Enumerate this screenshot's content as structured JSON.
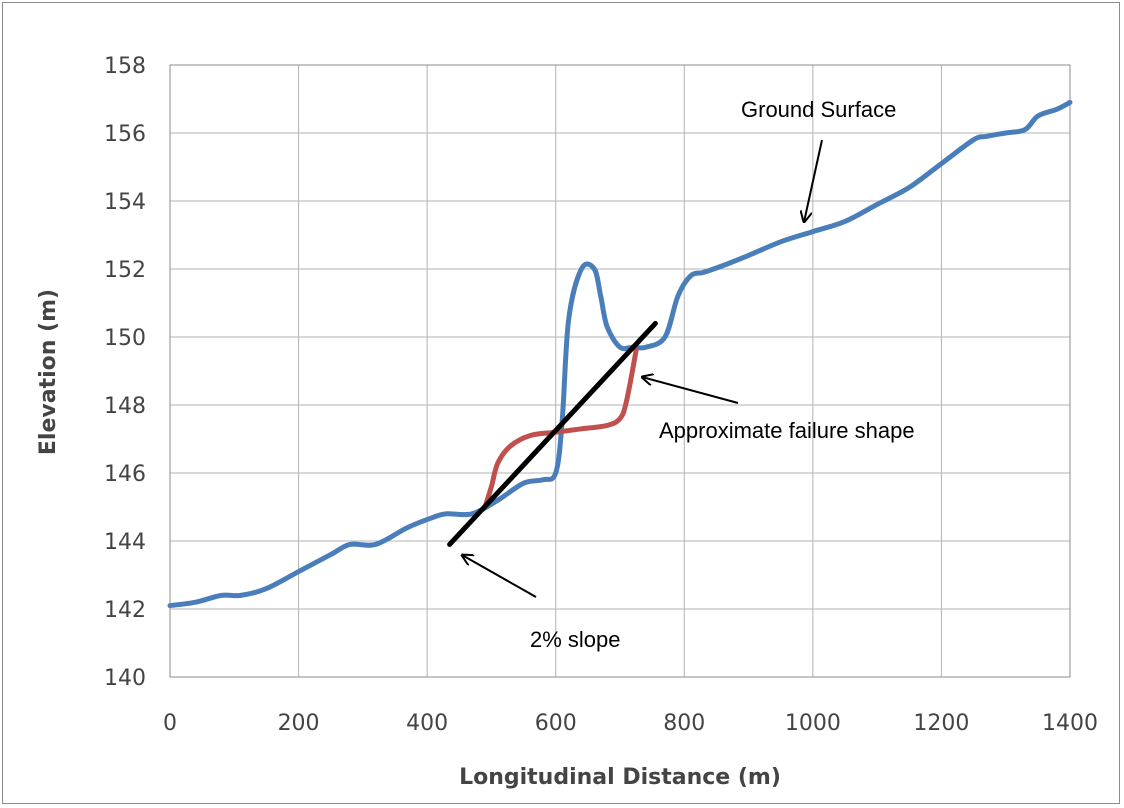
{
  "chart_data": {
    "type": "line",
    "title": "",
    "xlabel": "Longitudinal Distance (m)",
    "ylabel": "Elevation (m)",
    "xlim": [
      0,
      1400
    ],
    "ylim": [
      140,
      158
    ],
    "x_ticks": [
      "0",
      "200",
      "400",
      "600",
      "800",
      "1000",
      "1200",
      "1400"
    ],
    "y_ticks": [
      "140",
      "142",
      "144",
      "146",
      "148",
      "150",
      "152",
      "154",
      "156",
      "158"
    ],
    "grid": true,
    "legend": "none",
    "series": [
      {
        "color": "#4a7ebb",
        "x": [
          0,
          40,
          80,
          110,
          150,
          200,
          250,
          280,
          320,
          370,
          410,
          430,
          470,
          510,
          550,
          580,
          600,
          610,
          620,
          640,
          660,
          670,
          680,
          700,
          720,
          740,
          770,
          790,
          810,
          830,
          860,
          900,
          950,
          1000,
          1050,
          1100,
          1150,
          1200,
          1250,
          1270,
          1300,
          1330,
          1350,
          1380,
          1400
        ],
        "y": [
          142.1,
          142.2,
          142.4,
          142.4,
          142.6,
          143.1,
          143.6,
          143.9,
          143.9,
          144.4,
          144.7,
          144.8,
          144.8,
          145.2,
          145.7,
          145.8,
          146.0,
          147.5,
          150.5,
          152.0,
          152.0,
          151.2,
          150.3,
          149.7,
          149.7,
          149.7,
          150.0,
          151.2,
          151.8,
          151.9,
          152.1,
          152.4,
          152.8,
          153.1,
          153.4,
          153.9,
          154.4,
          155.1,
          155.8,
          155.9,
          156.0,
          156.1,
          156.5,
          156.7,
          156.9
        ]
      },
      {
        "color": "#c0504d",
        "x": [
          490,
          500,
          510,
          530,
          560,
          600,
          640,
          680,
          700,
          710,
          725
        ],
        "y": [
          145.0,
          145.6,
          146.3,
          146.8,
          147.1,
          147.2,
          147.3,
          147.4,
          147.6,
          148.1,
          149.6
        ]
      },
      {
        "color": "#000000",
        "x": [
          435,
          755
        ],
        "y": [
          143.9,
          150.4
        ]
      }
    ],
    "annotations": [
      {
        "text": "Ground Surface",
        "arrow_to": [
          990,
          152.8
        ]
      },
      {
        "text": "Approximate failure shape",
        "arrow_to": [
          730,
          149.1
        ]
      },
      {
        "text": "2% slope",
        "arrow_to": [
          450,
          143.6
        ]
      }
    ]
  }
}
